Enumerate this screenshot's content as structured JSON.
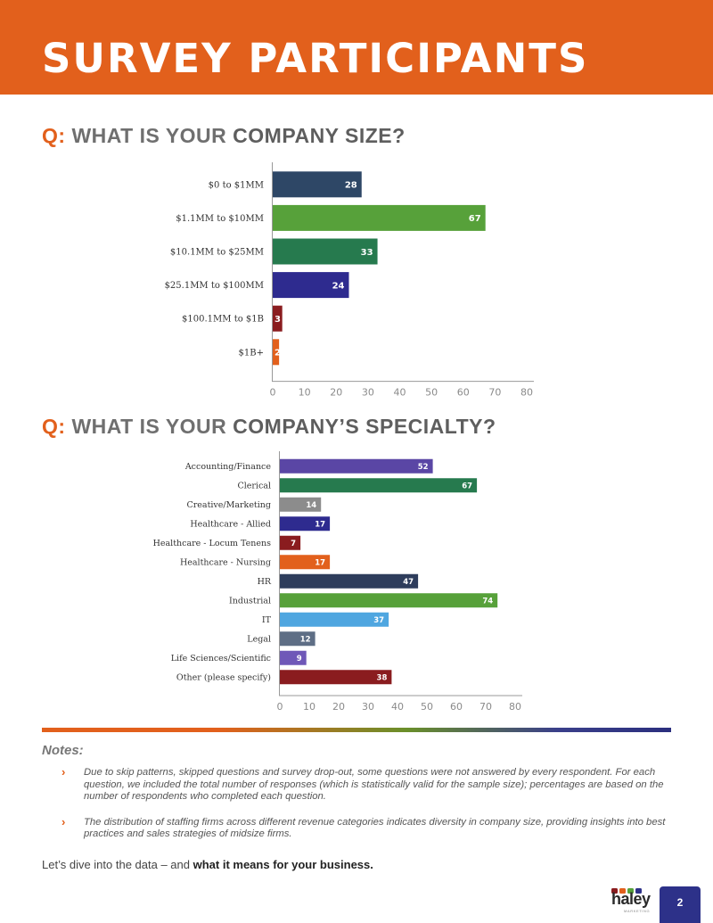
{
  "page": {
    "title": "SURVEY PARTICIPANTS",
    "page_number": "2",
    "logo_text": "haley",
    "logo_subtext": "MARKETING"
  },
  "questions": [
    {
      "prefix": "Q:",
      "text": "WHAT IS YOUR",
      "emphasis": "COMPANY SIZE?"
    },
    {
      "prefix": "Q:",
      "text": "WHAT IS YOUR",
      "emphasis": "COMPANY’S SPECIALTY?"
    }
  ],
  "chart_data": [
    {
      "type": "bar",
      "orientation": "horizontal",
      "title": "",
      "xlabel": "",
      "ylabel": "",
      "categories": [
        "$0 to $1MM",
        "$1.1MM to $10MM",
        "$10.1MM to $25MM",
        "$25.1MM to $100MM",
        "$100.1MM to $1B",
        "$1B+"
      ],
      "values": [
        28,
        67,
        33,
        24,
        3,
        2
      ],
      "colors": [
        "#2e4766",
        "#57a13a",
        "#267a4e",
        "#2e2b8f",
        "#8a1c1f",
        "#e2601c"
      ],
      "xlim": [
        0,
        80
      ],
      "ticks": [
        0,
        10,
        20,
        30,
        40,
        50,
        60,
        70,
        80
      ],
      "data_labels": true,
      "grid": false
    },
    {
      "type": "bar",
      "orientation": "horizontal",
      "title": "",
      "xlabel": "",
      "ylabel": "",
      "categories": [
        "Accounting/Finance",
        "Clerical",
        "Creative/Marketing",
        "Healthcare - Allied",
        "Healthcare - Locum Tenens",
        "Healthcare - Nursing",
        "HR",
        "Industrial",
        "IT",
        "Legal",
        "Life Sciences/Scientific",
        "Other (please specify)"
      ],
      "values": [
        52,
        67,
        14,
        17,
        7,
        17,
        47,
        74,
        37,
        12,
        9,
        38
      ],
      "colors": [
        "#5a46a5",
        "#267a4e",
        "#8c8c8c",
        "#2e2b8f",
        "#8a1c1f",
        "#e2601c",
        "#2e3d5c",
        "#57a13a",
        "#4fa6e0",
        "#5e6e85",
        "#6f58b8",
        "#8a1c1f"
      ],
      "xlim": [
        0,
        80
      ],
      "ticks": [
        0,
        10,
        20,
        30,
        40,
        50,
        60,
        70,
        80
      ],
      "data_labels": true,
      "grid": false
    }
  ],
  "notes": {
    "title": "Notes:",
    "items": [
      "Due to skip patterns, skipped questions and survey drop-out, some questions were not answered by every respondent. For each question, we included the total number of responses (which is statistically valid for the sample size); percentages are based on the number of respondents who completed each question.",
      "The distribution of staffing firms across different revenue categories indicates diversity in company size, providing insights into best practices and sales strategies of midsize firms."
    ]
  },
  "closing": {
    "text": "Let’s dive into the data – and ",
    "bold": "what it means for your business."
  },
  "colors": {
    "accent": "#e2601c",
    "navy": "#2d3189"
  }
}
